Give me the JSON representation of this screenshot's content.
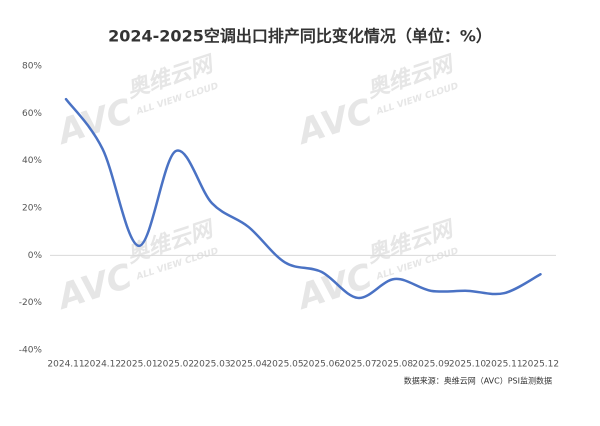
{
  "chart_data": {
    "type": "line",
    "title": "2024-2025空调出口排产同比变化情况（单位：%）",
    "source": "数据来源：奥维云网（AVC）PSI监测数据",
    "watermark": [
      "AVC",
      "奥维云网",
      "ALL VIEW CLOUD"
    ],
    "categories": [
      "2024.11",
      "2024.12",
      "2025.01",
      "2025.02",
      "2025.03",
      "2025.04",
      "2025.05",
      "2025.06",
      "2025.07",
      "2025.08",
      "2025.09",
      "2025.10",
      "2025.11",
      "2025.12"
    ],
    "values": [
      66,
      45,
      4,
      44,
      22,
      12,
      -3,
      -7,
      -18,
      -10,
      -15,
      -15,
      -16,
      -8
    ],
    "color": "#4a72c4",
    "ylim": [
      -40,
      80
    ],
    "yticks": [
      {
        "value": 80,
        "label": "80%"
      },
      {
        "value": 60,
        "label": "60%"
      },
      {
        "value": 40,
        "label": "40%"
      },
      {
        "value": 20,
        "label": "20%"
      },
      {
        "value": 0,
        "label": "0%"
      },
      {
        "value": -20,
        "label": "-20%"
      },
      {
        "value": -40,
        "label": "-40%"
      }
    ],
    "zero_line": true
  }
}
